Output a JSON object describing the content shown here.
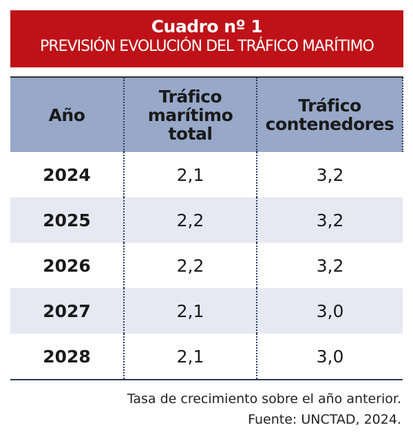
{
  "banner": {
    "title": "Cuadro nº 1",
    "subtitle": "PREVISIÓN EVOLUCIÓN DEL TRÁFICO MARÍTIMO",
    "color": "#be1218"
  },
  "table": {
    "headers": [
      "Año",
      "Tráfico marítimo total",
      "Tráfico contenedores"
    ],
    "rows": [
      [
        "2024",
        "2,1",
        "3,2"
      ],
      [
        "2025",
        "2,2",
        "3,2"
      ],
      [
        "2026",
        "2,2",
        "3,2"
      ],
      [
        "2027",
        "2,1",
        "3,0"
      ],
      [
        "2028",
        "2,1",
        "3,0"
      ]
    ]
  },
  "footer": {
    "note": "Tasa de crecimiento sobre el año anterior.",
    "source": "Fuente: UNCTAD, 2024."
  }
}
